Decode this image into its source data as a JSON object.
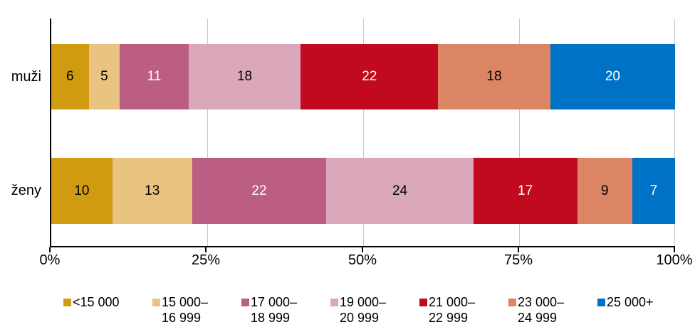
{
  "chart_data": {
    "type": "bar",
    "variant": "horizontal-stacked-percent",
    "title": "",
    "categories": [
      "muži",
      "ženy"
    ],
    "series": [
      {
        "name": "<15 000",
        "legend_lines": [
          "<15 000"
        ],
        "color": "#D09B10",
        "label_color": "#000000",
        "values": [
          6,
          10
        ]
      },
      {
        "name": "15 000–16 999",
        "legend_lines": [
          "15 000–",
          "16 999"
        ],
        "color": "#E8C480",
        "label_color": "#000000",
        "values": [
          5,
          13
        ]
      },
      {
        "name": "17 000–18 999",
        "legend_lines": [
          "17 000–",
          "18 999"
        ],
        "color": "#BC5E81",
        "label_color": "#FFFFFF",
        "values": [
          11,
          22
        ]
      },
      {
        "name": "19 000–20 999",
        "legend_lines": [
          "19 000–",
          "20 999"
        ],
        "color": "#DAA8BA",
        "label_color": "#000000",
        "values": [
          18,
          24
        ]
      },
      {
        "name": "21 000–22 999",
        "legend_lines": [
          "21 000–",
          "22 999"
        ],
        "color": "#C20A1E",
        "label_color": "#FFFFFF",
        "values": [
          22,
          17
        ]
      },
      {
        "name": "23 000–24 999",
        "legend_lines": [
          "23 000–",
          "24 999"
        ],
        "color": "#DB8565",
        "label_color": "#000000",
        "values": [
          18,
          9
        ]
      },
      {
        "name": "25 000+",
        "legend_lines": [
          "25 000+"
        ],
        "color": "#0072C6",
        "label_color": "#FFFFFF",
        "values": [
          20,
          7
        ]
      }
    ],
    "x_ticks": [
      {
        "label": "0%",
        "pct": 0
      },
      {
        "label": "25%",
        "pct": 25
      },
      {
        "label": "50%",
        "pct": 50
      },
      {
        "label": "75%",
        "pct": 75
      },
      {
        "label": "100%",
        "pct": 100
      }
    ],
    "xlim": [
      0,
      100
    ],
    "grid": true,
    "legend_position": "bottom",
    "axis_color": "#000000",
    "grid_color": "#C8C8C8"
  }
}
